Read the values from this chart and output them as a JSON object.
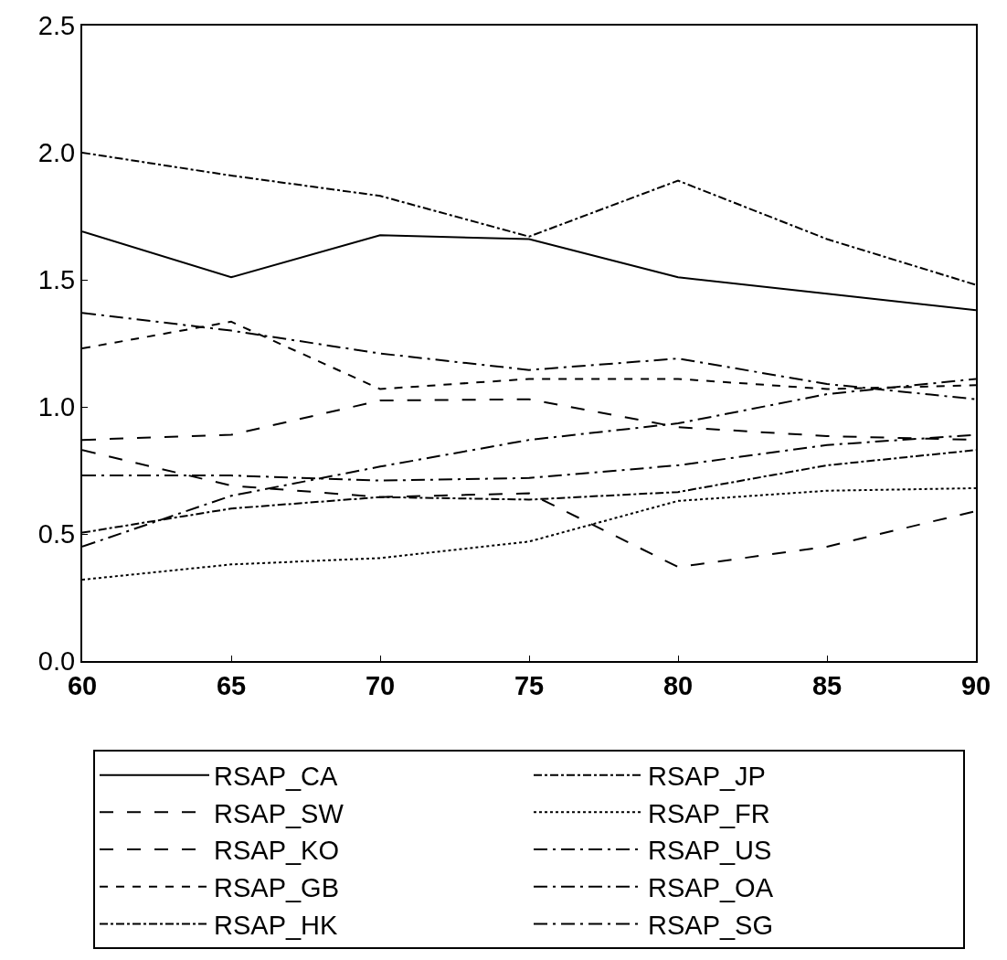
{
  "chart_data": {
    "type": "line",
    "x": [
      60,
      65,
      70,
      75,
      80,
      85,
      90
    ],
    "xlim": [
      60,
      90
    ],
    "xticks": [
      60,
      65,
      70,
      75,
      80,
      85,
      90
    ],
    "ylim": [
      0,
      2.5
    ],
    "yticks": [
      {
        "value": 0,
        "label": "0.0"
      },
      {
        "value": 0.5,
        "label": "0.5"
      },
      {
        "value": 1,
        "label": "1.0"
      },
      {
        "value": 1.5,
        "label": "1.5"
      },
      {
        "value": 2,
        "label": "2.0"
      },
      {
        "value": 2.5,
        "label": "2.5"
      }
    ],
    "grid": false,
    "legend": "bottom",
    "marker": "none",
    "series": [
      {
        "name": "RSAP_CA",
        "color": "#000000",
        "line_style": "solid",
        "values": [
          1.69,
          1.51,
          1.675,
          1.66,
          1.51,
          1.445,
          1.38
        ]
      },
      {
        "name": "RSAP_FR",
        "color": "#000000",
        "line_style": "dotted",
        "values": [
          0.32,
          0.38,
          0.405,
          0.47,
          0.63,
          0.67,
          0.68
        ]
      },
      {
        "name": "RSAP_GB",
        "color": "#000000",
        "line_style": "dashed",
        "values": [
          1.23,
          1.335,
          1.07,
          1.11,
          1.11,
          1.07,
          1.085
        ]
      },
      {
        "name": "RSAP_HK",
        "color": "#000000",
        "line_style": "dashdot",
        "values": [
          0.505,
          0.6,
          0.645,
          0.635,
          0.665,
          0.77,
          0.83
        ]
      },
      {
        "name": "RSAP_JP",
        "color": "#000000",
        "line_style": "dashdot",
        "values": [
          2.0,
          1.91,
          1.83,
          1.67,
          1.89,
          1.66,
          1.48
        ]
      },
      {
        "name": "RSAP_KO",
        "color": "#000000",
        "line_style": "longdash",
        "values": [
          0.87,
          0.89,
          1.025,
          1.03,
          0.92,
          0.885,
          0.87
        ]
      },
      {
        "name": "RSAP_OA",
        "color": "#000000",
        "line_style": "longdashdot",
        "values": [
          0.73,
          0.73,
          0.71,
          0.72,
          0.77,
          0.85,
          0.89
        ]
      },
      {
        "name": "RSAP_SG",
        "color": "#000000",
        "line_style": "longdashdot",
        "values": [
          1.37,
          1.3,
          1.21,
          1.145,
          1.19,
          1.09,
          1.03
        ]
      },
      {
        "name": "RSAP_SW",
        "color": "#000000",
        "line_style": "longdash",
        "values": [
          0.83,
          0.69,
          0.645,
          0.66,
          0.37,
          0.45,
          0.59
        ]
      },
      {
        "name": "RSAP_US",
        "color": "#000000",
        "line_style": "longdashdot",
        "values": [
          0.45,
          0.65,
          0.765,
          0.87,
          0.935,
          1.05,
          1.11
        ]
      }
    ]
  }
}
